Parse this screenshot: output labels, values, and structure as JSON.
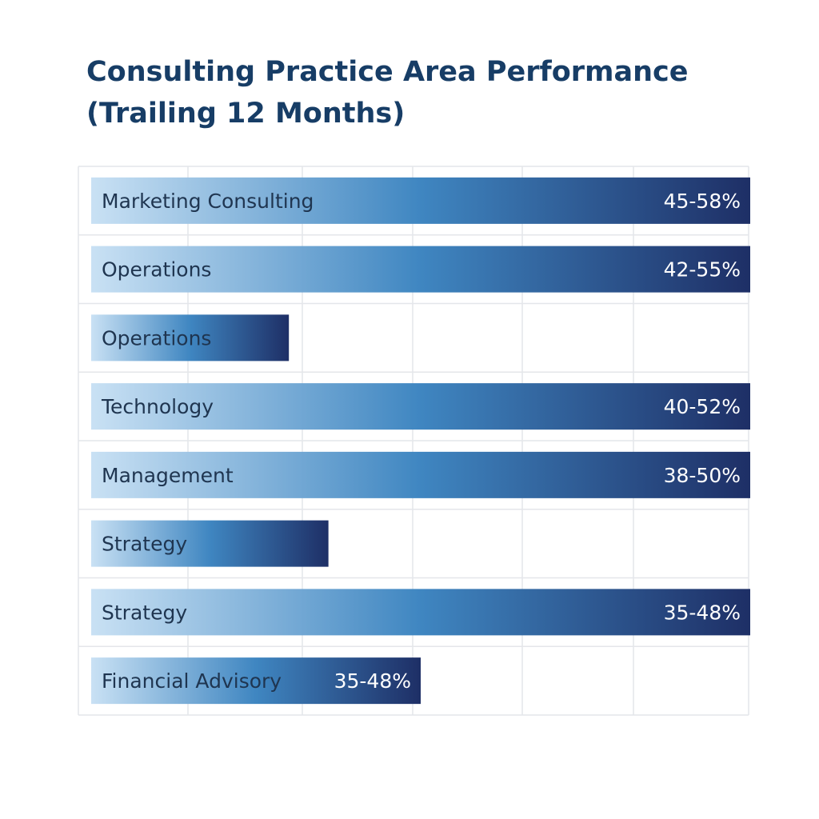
{
  "chart_data": {
    "type": "bar",
    "orientation": "horizontal",
    "title": "Consulting Practice Area Performance",
    "subtitle": "(Trailing 12 Months)",
    "categories": [
      "Marketing Consulting",
      "Operations",
      "Operations",
      "Technology",
      "Management",
      "Strategy",
      "Strategy",
      "Financial Advisory"
    ],
    "values": [
      100,
      100,
      30,
      100,
      100,
      36,
      100,
      50
    ],
    "value_labels": [
      "45-58%",
      "42-55%",
      "",
      "40-52%",
      "38-50%",
      "",
      "35-48%",
      "35-48%"
    ],
    "xlim": [
      0,
      100
    ],
    "grid": true,
    "colors": {
      "gradient_start": "#c9e1f4",
      "gradient_mid": "#3f86c1",
      "gradient_end": "#1e2f66"
    }
  }
}
